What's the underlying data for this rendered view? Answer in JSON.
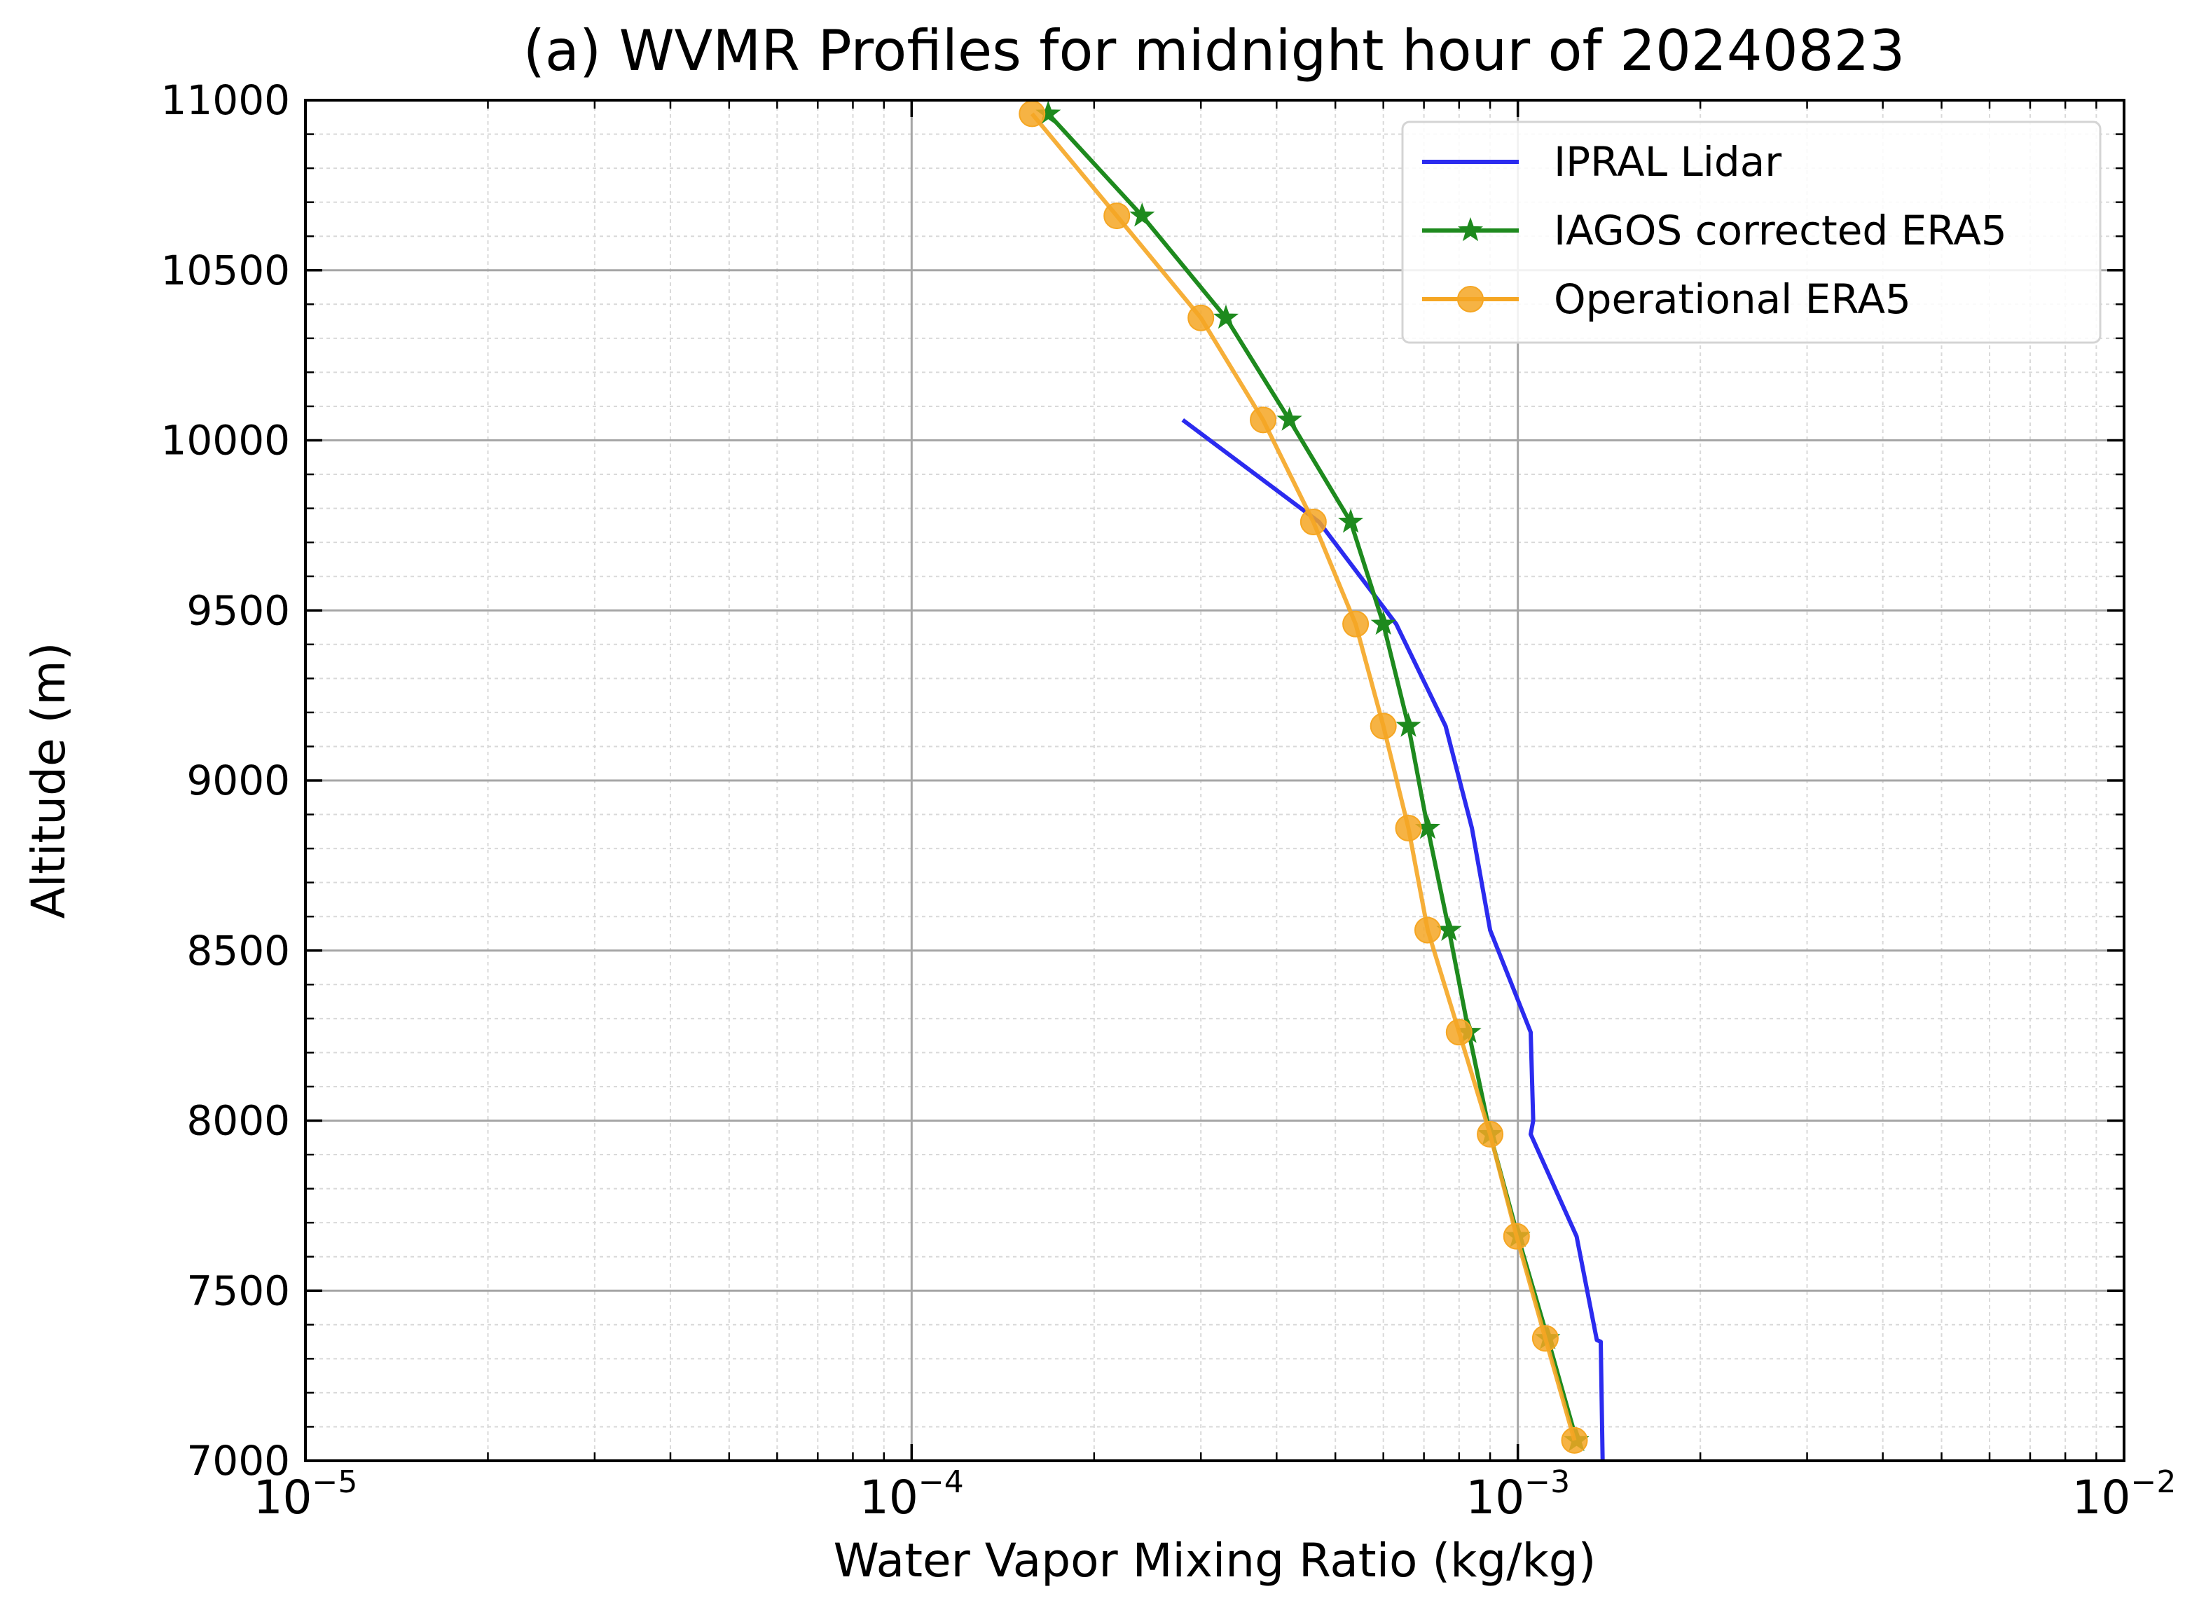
{
  "chart_data": {
    "type": "line",
    "title": "(a) WVMR Profiles for midnight hour of 20240823",
    "xlabel": "Water Vapor Mixing Ratio (kg/kg)",
    "ylabel": "Altitude (m)",
    "xscale": "log",
    "xlim": [
      1e-05,
      0.01
    ],
    "ylim": [
      7000,
      11000
    ],
    "xticks": [
      {
        "base": "10",
        "exp": "−5",
        "value": 1e-05
      },
      {
        "base": "10",
        "exp": "−4",
        "value": 0.0001
      },
      {
        "base": "10",
        "exp": "−3",
        "value": 0.001
      },
      {
        "base": "10",
        "exp": "−2",
        "value": 0.01
      }
    ],
    "yticks": [
      "7000",
      "7500",
      "8000",
      "8500",
      "9000",
      "9500",
      "10000",
      "10500",
      "11000"
    ],
    "grid": true,
    "legend_position": "top-right",
    "series": [
      {
        "name": "IPRAL Lidar",
        "color": "#2b2bef",
        "marker": "none",
        "x": [
          0.00138,
          0.00137,
          0.00135,
          0.00125,
          0.00105,
          0.00106,
          0.00105,
          0.0009,
          0.00084,
          0.00076,
          0.00063,
          0.00047,
          0.00028
        ],
        "y": [
          7000,
          7350,
          7355,
          7660,
          7960,
          8000,
          8260,
          8560,
          8860,
          9160,
          9460,
          9760,
          10060
        ]
      },
      {
        "name": "IAGOS corrected ERA5",
        "color": "#1e8a1e",
        "marker": "star",
        "x": [
          0.00125,
          0.00112,
          0.001,
          0.0009,
          0.00083,
          0.00077,
          0.00071,
          0.00066,
          0.0006,
          0.00053,
          0.00042,
          0.00033,
          0.00024,
          0.000168
        ],
        "y": [
          7060,
          7360,
          7660,
          7960,
          8260,
          8560,
          8860,
          9160,
          9460,
          9760,
          10060,
          10360,
          10660,
          10960
        ]
      },
      {
        "name": "Operational ERA5",
        "color": "#f5a623",
        "marker": "circle",
        "x": [
          0.00124,
          0.00111,
          0.000995,
          0.0009,
          0.0008,
          0.00071,
          0.00066,
          0.0006,
          0.00054,
          0.00046,
          0.00038,
          0.0003,
          0.000218,
          0.000158
        ],
        "y": [
          7060,
          7360,
          7660,
          7960,
          8260,
          8560,
          8860,
          9160,
          9460,
          9760,
          10060,
          10360,
          10660,
          10960
        ]
      }
    ]
  }
}
